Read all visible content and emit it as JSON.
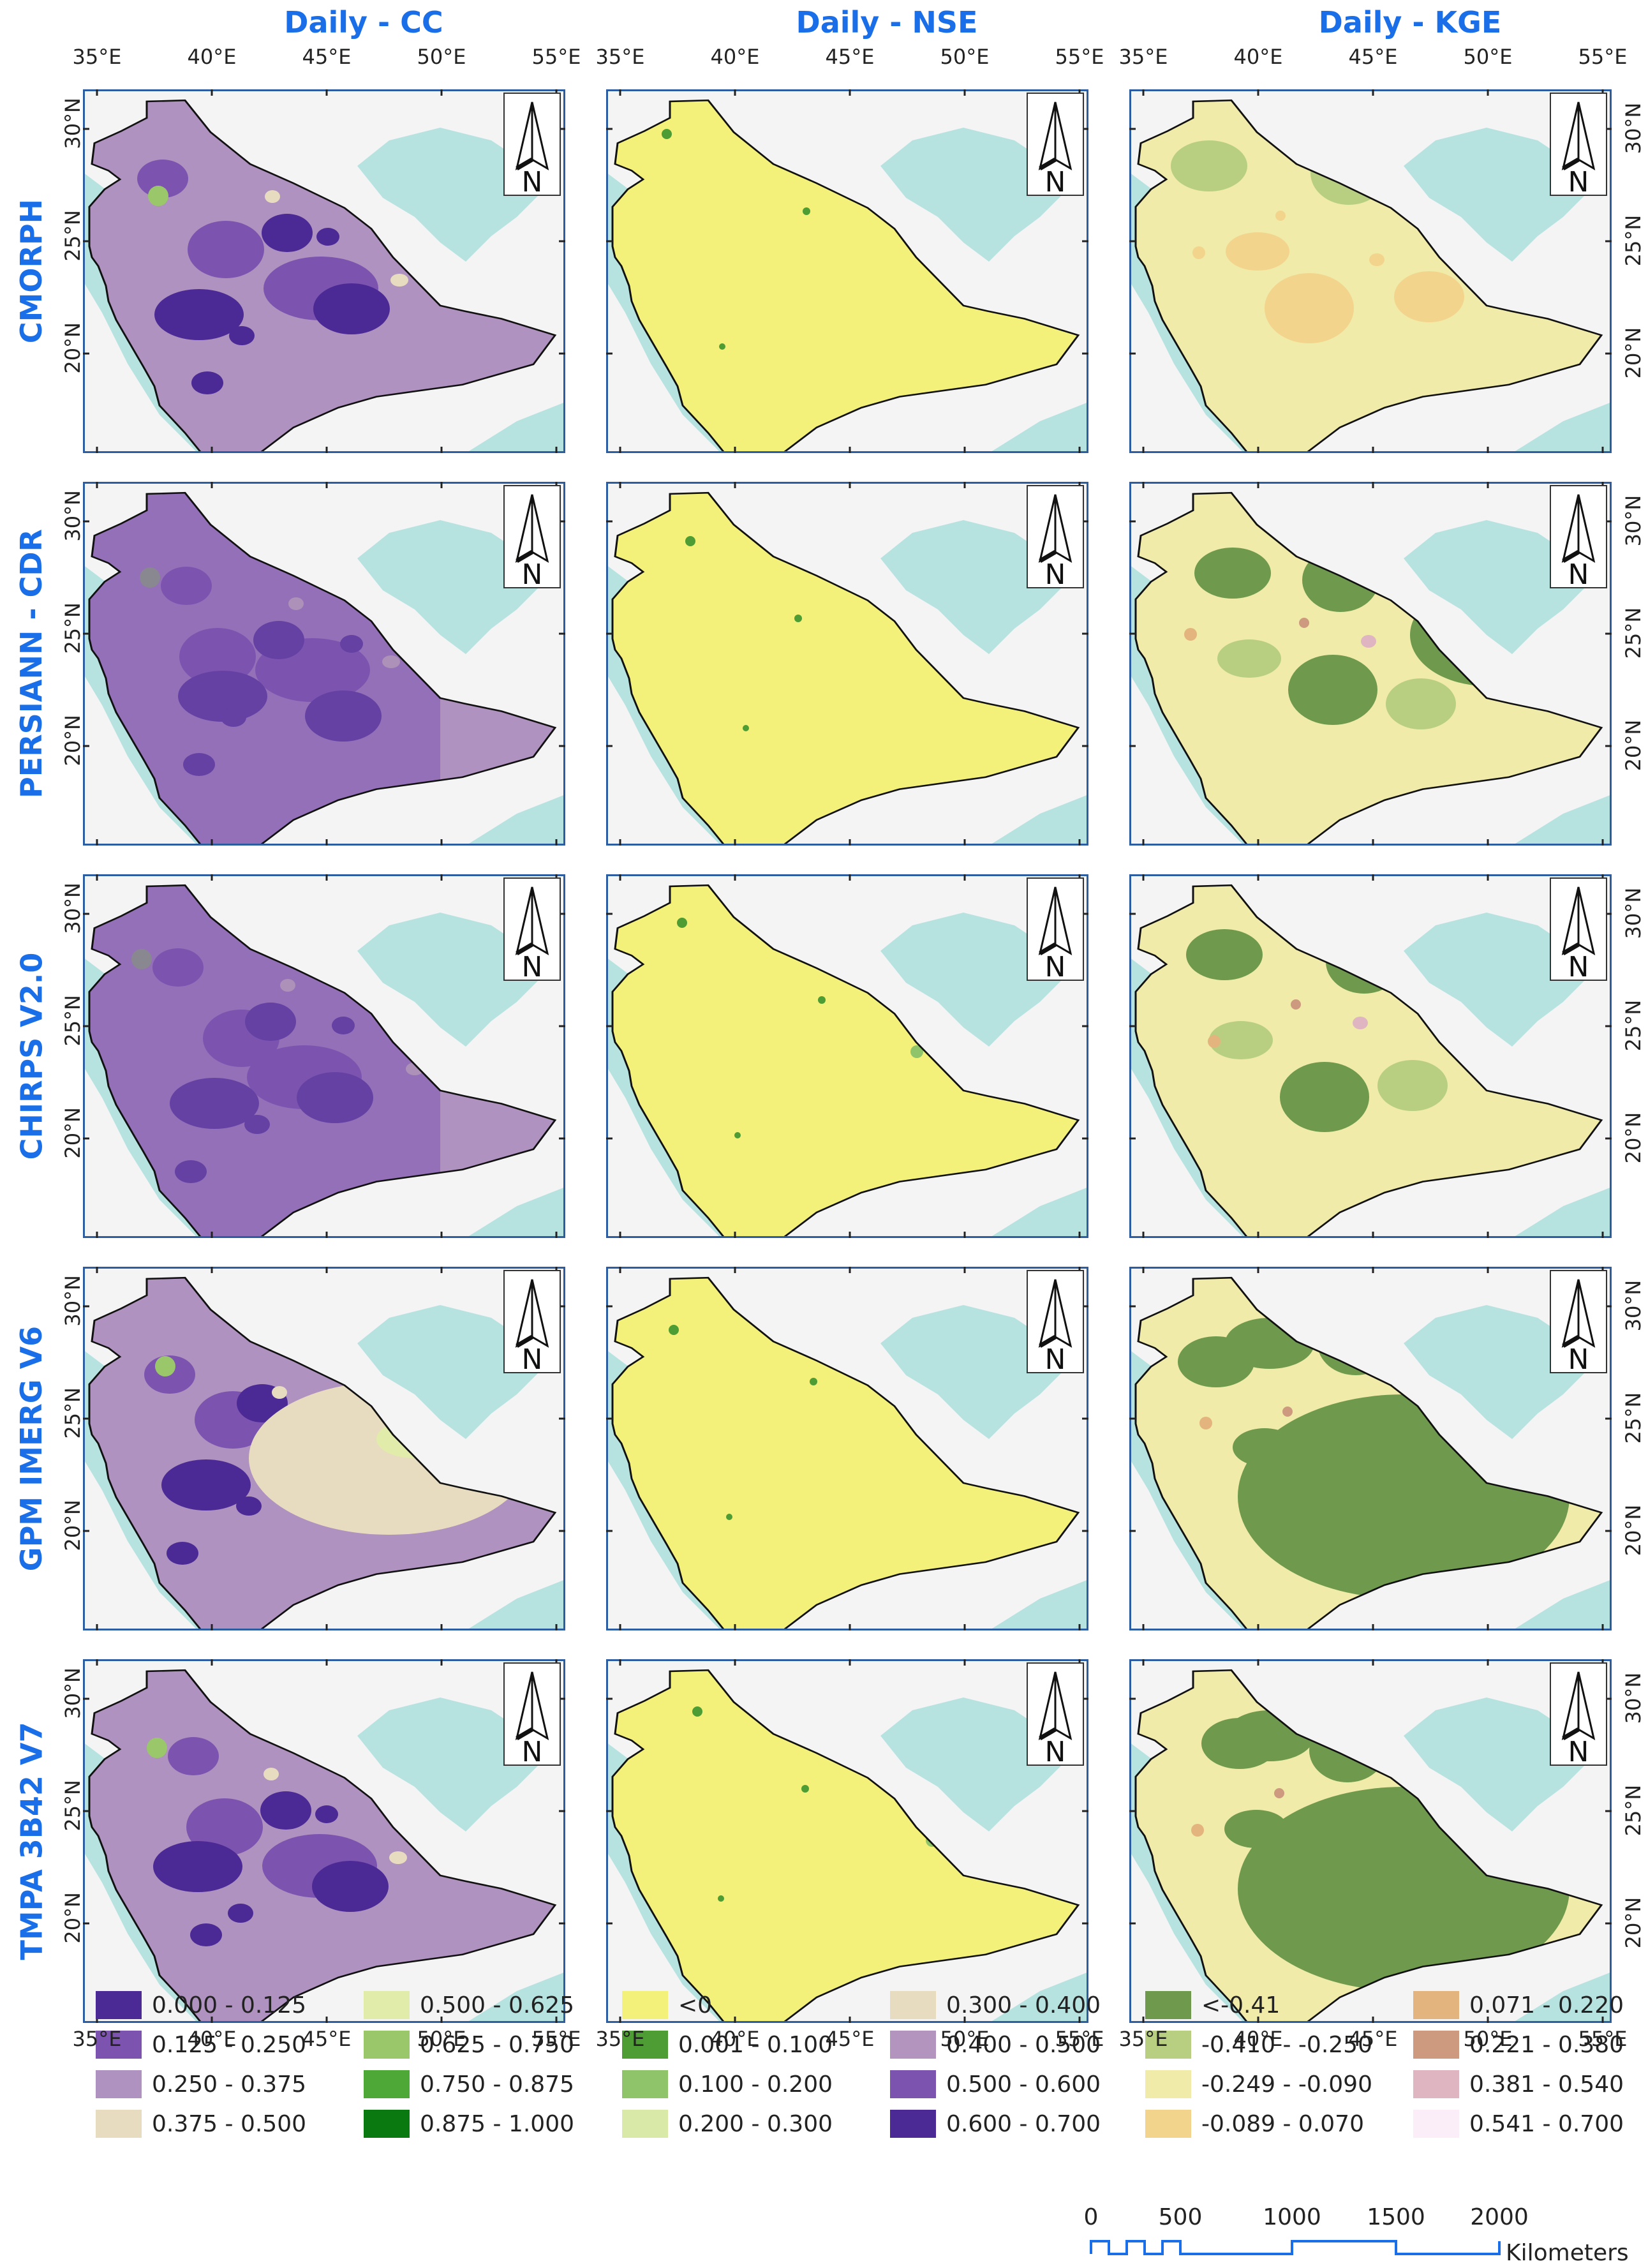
{
  "columns": [
    "Daily - CC",
    "Daily - NSE",
    "Daily - KGE"
  ],
  "rows": [
    "CMORPH",
    "PERSIANN - CDR",
    "CHIRPS V2.0",
    "GPM IMERG V6",
    "TMPA 3B42 V7"
  ],
  "lon_ticks": [
    "35°E",
    "40°E",
    "45°E",
    "50°E",
    "55°E"
  ],
  "lat_ticks": [
    "30°N",
    "25°N",
    "20°N"
  ],
  "north_label": "N",
  "legends": {
    "cc": [
      {
        "label": "0.000 - 0.125",
        "color": "#4b2a96"
      },
      {
        "label": "0.125 - 0.250",
        "color": "#7c54b0"
      },
      {
        "label": "0.250 - 0.375",
        "color": "#af92bf"
      },
      {
        "label": "0.375 - 0.500",
        "color": "#e8dcc0"
      },
      {
        "label": "0.500 - 0.625",
        "color": "#e1ecaa"
      },
      {
        "label": "0.625 - 0.750",
        "color": "#9ac76a"
      },
      {
        "label": "0.750 - 0.875",
        "color": "#4ea838"
      },
      {
        "label": "0.875 - 1.000",
        "color": "#0a7a10"
      }
    ],
    "nse": [
      {
        "label": "<0",
        "color": "#f3f17a"
      },
      {
        "label": "0.001 - 0.100",
        "color": "#4e9d34"
      },
      {
        "label": "0.100 - 0.200",
        "color": "#8fc46a"
      },
      {
        "label": "0.200 - 0.300",
        "color": "#d9eaa8"
      },
      {
        "label": "0.300 - 0.400",
        "color": "#e8dcc0"
      },
      {
        "label": "0.400 - 0.500",
        "color": "#b394bf"
      },
      {
        "label": "0.500 - 0.600",
        "color": "#7c54b0"
      },
      {
        "label": "0.600 - 0.700",
        "color": "#4b2a96"
      }
    ],
    "kge": [
      {
        "label": "<-0.41",
        "color": "#6f9a4e"
      },
      {
        "label": "-0.410 - -0.250",
        "color": "#b8cf82"
      },
      {
        "label": "-0.249 - -0.090",
        "color": "#f0eba8"
      },
      {
        "label": "-0.089 - 0.070",
        "color": "#f2d48c"
      },
      {
        "label": "0.071 - 0.220",
        "color": "#e4b47e"
      },
      {
        "label": "0.221 - 0.380",
        "color": "#cd9a7f"
      },
      {
        "label": "0.381 - 0.540",
        "color": "#e0b5c2"
      },
      {
        "label": "0.541 - 0.700",
        "color": "#fbeef8"
      }
    ]
  },
  "scalebar": {
    "ticks": [
      "0",
      "500",
      "1000",
      "1500",
      "2000"
    ],
    "unit": "Kilometers"
  },
  "colors": {
    "title": "#1a6fe8",
    "sea": "#b6e3e0",
    "land_outside": "#f4f4f4",
    "cc_base": "#af92bf",
    "nse_base": "#f3f17a",
    "kge_base": "#f0eba8"
  }
}
